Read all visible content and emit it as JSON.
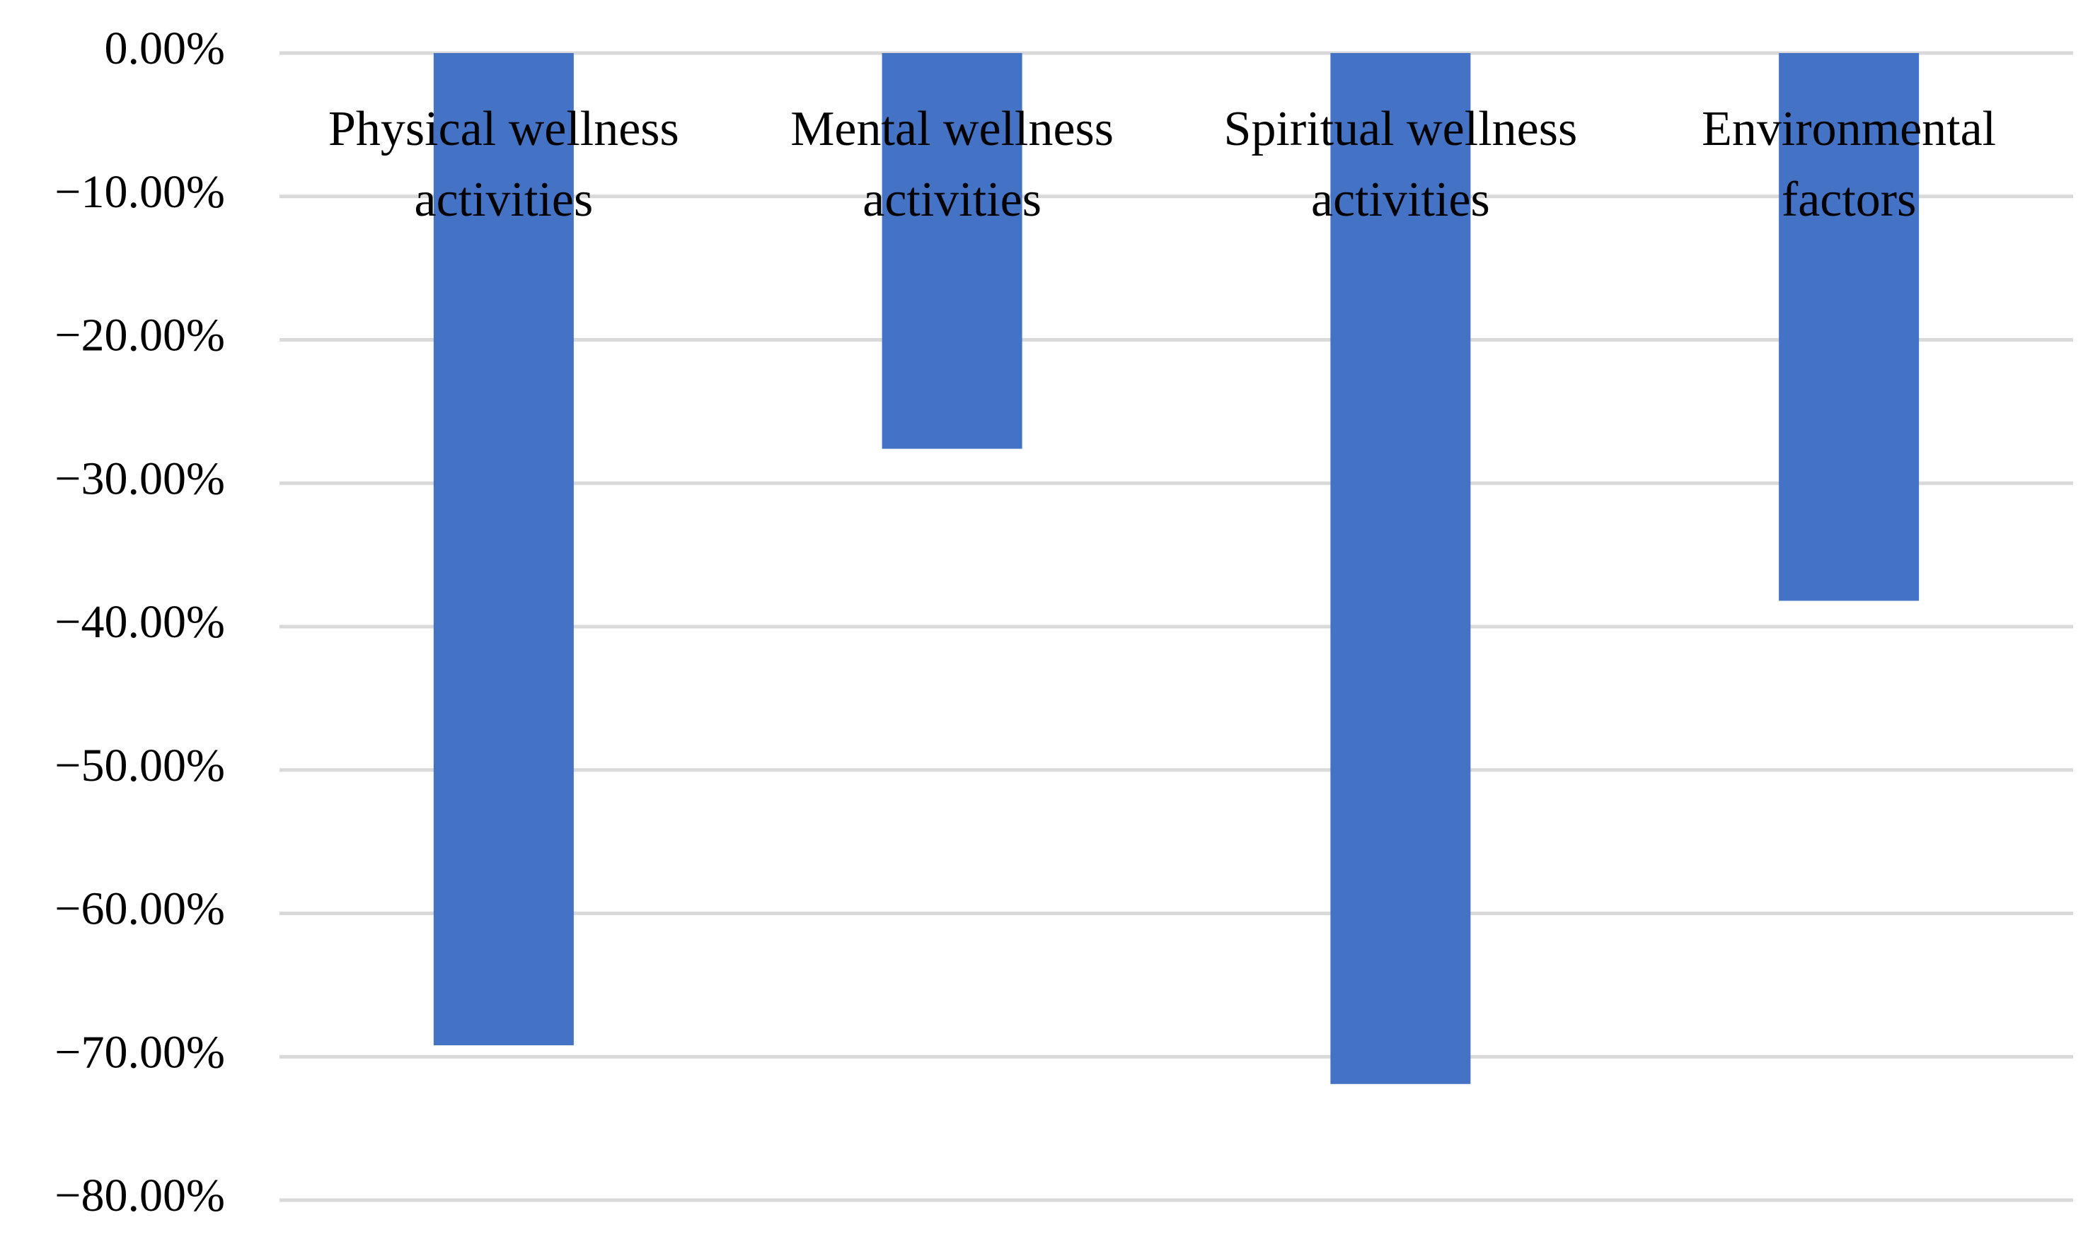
{
  "chart_data": {
    "type": "bar",
    "categories": [
      [
        "Physical wellness",
        "activities"
      ],
      [
        "Mental wellness",
        "activities"
      ],
      [
        "Spiritual wellness",
        "activities"
      ],
      [
        "Environmental",
        "factors"
      ]
    ],
    "values": [
      -69.2,
      -27.6,
      -71.9,
      -38.2
    ],
    "ylim": [
      -80,
      0
    ],
    "yticks": [
      0,
      -10,
      -20,
      -30,
      -40,
      -50,
      -60,
      -70,
      -80
    ],
    "ytick_labels": [
      "0.00%",
      "−10.00%",
      "−20.00%",
      "−30.00%",
      "−40.00%",
      "−50.00%",
      "−60.00%",
      "−70.00%",
      "−80.00%"
    ],
    "title": "",
    "xlabel": "",
    "ylabel": "",
    "grid": true,
    "legend": false,
    "bar_color": "#4472c4",
    "grid_color": "#d9d9d9"
  }
}
